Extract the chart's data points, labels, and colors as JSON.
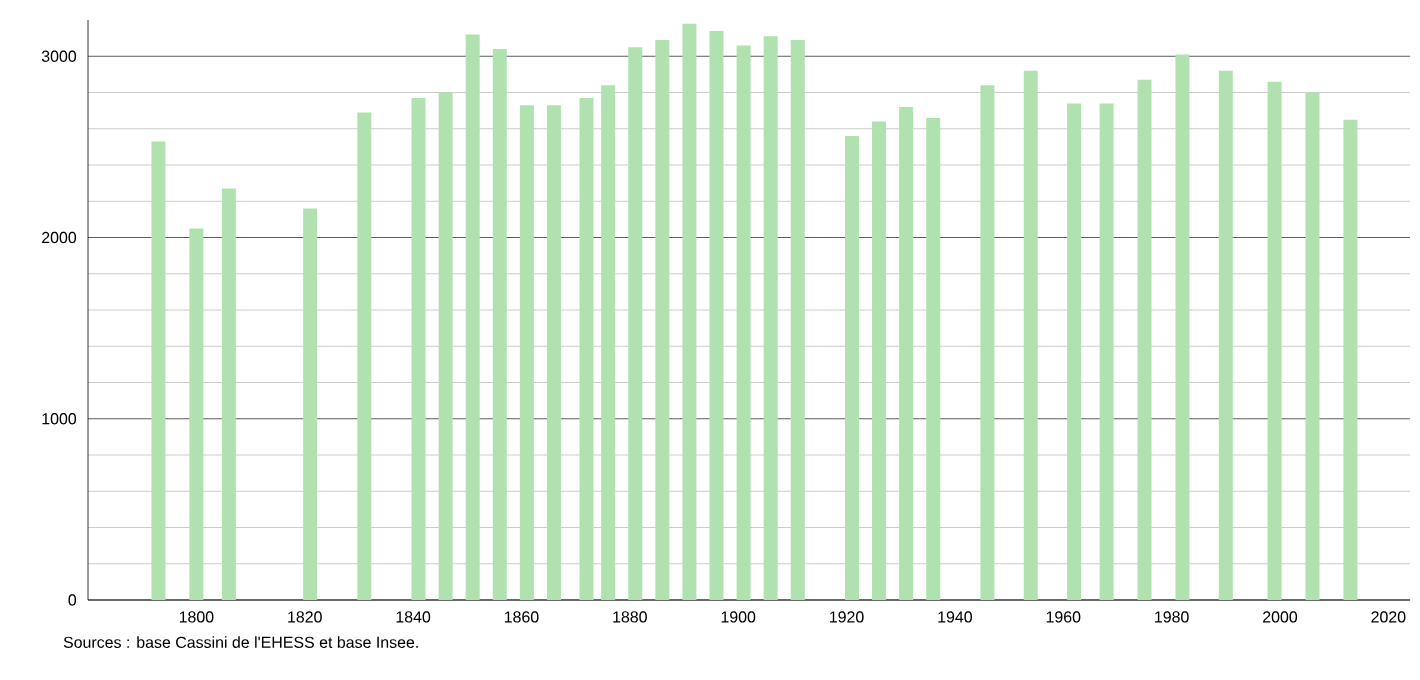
{
  "chart_data": {
    "type": "bar",
    "x": [
      1793,
      1800,
      1806,
      1821,
      1831,
      1841,
      1846,
      1851,
      1856,
      1861,
      1866,
      1872,
      1876,
      1881,
      1886,
      1891,
      1896,
      1901,
      1906,
      1911,
      1921,
      1926,
      1931,
      1936,
      1946,
      1954,
      1962,
      1968,
      1975,
      1982,
      1990,
      1999,
      2006,
      2013
    ],
    "values": [
      2530,
      2050,
      2270,
      2160,
      2690,
      2770,
      2800,
      3120,
      3040,
      2730,
      2730,
      2770,
      2840,
      3050,
      3090,
      3180,
      3140,
      3060,
      3110,
      3090,
      2560,
      2640,
      2720,
      2660,
      2840,
      2920,
      2740,
      2740,
      2870,
      3010,
      2920,
      2860,
      2800,
      2650
    ],
    "color": "#b0e2b0",
    "xlim": [
      1780,
      2024
    ],
    "ylim": [
      0,
      3200
    ],
    "xticks": [
      1800,
      1820,
      1840,
      1860,
      1880,
      1900,
      1920,
      1940,
      1960,
      1980,
      2000,
      2020
    ],
    "yticks": [
      0,
      1000,
      2000,
      3000
    ],
    "grid": "y",
    "annotations": [
      "Sources : base Cassini de l'EHESS et base Insee."
    ]
  }
}
